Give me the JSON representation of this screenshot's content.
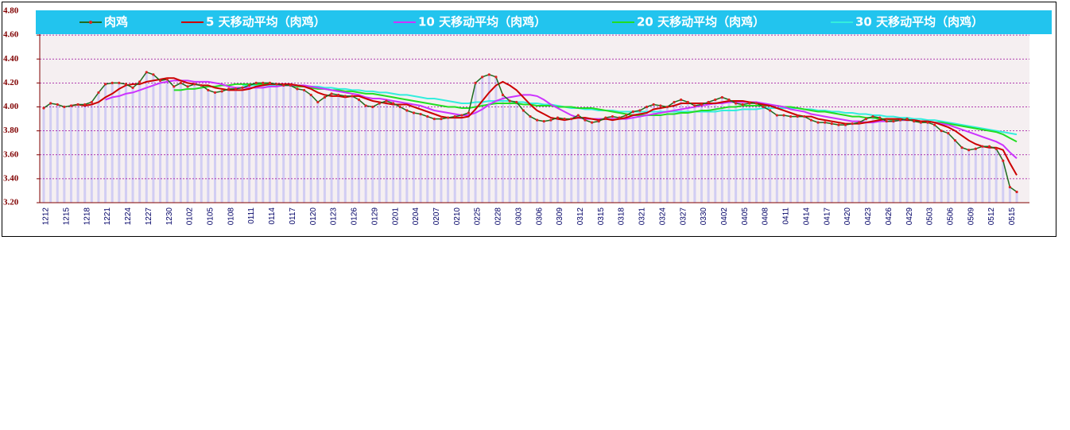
{
  "chart_data": {
    "type": "line",
    "categories": [
      "1212",
      null,
      null,
      "1215",
      null,
      null,
      "1218",
      null,
      null,
      "1221",
      null,
      null,
      "1224",
      null,
      null,
      "1227",
      null,
      null,
      "1230",
      null,
      null,
      "0102",
      null,
      null,
      "0105",
      null,
      null,
      "0108",
      null,
      null,
      "0111",
      null,
      null,
      "0114",
      null,
      null,
      "0117",
      null,
      null,
      "0120",
      null,
      null,
      "0123",
      null,
      null,
      "0126",
      null,
      null,
      "0129",
      null,
      null,
      "0201",
      null,
      null,
      "0204",
      null,
      null,
      "0207",
      null,
      null,
      "0210",
      null,
      null,
      "0225",
      null,
      null,
      "0228",
      null,
      null,
      "0303",
      null,
      null,
      "0306",
      null,
      null,
      "0309",
      null,
      null,
      "0312",
      null,
      null,
      "0315",
      null,
      null,
      "0318",
      null,
      null,
      "0321",
      null,
      null,
      "0324",
      null,
      null,
      "0327",
      null,
      null,
      "0330",
      null,
      null,
      "0402",
      null,
      null,
      "0405",
      null,
      null,
      "0408",
      null,
      null,
      "0411",
      null,
      null,
      "0414",
      null,
      null,
      "0417",
      null,
      null,
      "0420",
      null,
      null,
      "0423",
      null,
      null,
      "0426",
      null,
      null,
      "0429",
      null,
      null,
      "0503",
      null,
      null,
      "0506",
      null,
      null,
      "0509",
      null,
      null,
      "0512",
      null,
      null,
      "0515",
      null
    ],
    "series": [
      {
        "name": "肉鸡",
        "color": "#1f6b1f",
        "values": [
          3.99,
          4.03,
          4.02,
          4.0,
          4.01,
          4.02,
          4.02,
          4.04,
          4.12,
          4.19,
          4.2,
          4.2,
          4.19,
          4.16,
          4.21,
          4.29,
          4.27,
          4.22,
          4.23,
          4.17,
          4.2,
          4.17,
          4.19,
          4.18,
          4.14,
          4.12,
          4.13,
          4.15,
          4.15,
          4.16,
          4.18,
          4.2,
          4.2,
          4.2,
          4.19,
          4.18,
          4.18,
          4.15,
          4.14,
          4.1,
          4.04,
          4.08,
          4.11,
          4.1,
          4.09,
          4.09,
          4.06,
          4.01,
          4.0,
          4.03,
          4.05,
          4.03,
          4.0,
          3.97,
          3.95,
          3.94,
          3.92,
          3.9,
          3.9,
          3.91,
          3.92,
          3.93,
          3.95,
          4.2,
          4.25,
          4.27,
          4.25,
          4.1,
          4.05,
          4.04,
          3.97,
          3.92,
          3.89,
          3.88,
          3.89,
          3.91,
          3.9,
          3.9,
          3.93,
          3.89,
          3.87,
          3.88,
          3.91,
          3.92,
          3.91,
          3.93,
          3.96,
          3.97,
          4.0,
          4.02,
          4.01,
          4.0,
          4.04,
          4.06,
          4.04,
          4.01,
          4.02,
          4.04,
          4.06,
          4.08,
          4.06,
          4.03,
          4.02,
          4.03,
          4.03,
          4.0,
          3.97,
          3.93,
          3.93,
          3.92,
          3.92,
          3.92,
          3.89,
          3.87,
          3.87,
          3.86,
          3.85,
          3.85,
          3.86,
          3.87,
          3.9,
          3.92,
          3.91,
          3.88,
          3.88,
          3.89,
          3.9,
          3.88,
          3.87,
          3.87,
          3.85,
          3.8,
          3.78,
          3.72,
          3.66,
          3.64,
          3.65,
          3.67,
          3.67,
          3.65,
          3.55,
          3.33,
          3.29
        ]
      },
      {
        "name": "5 天移动平均（肉鸡）",
        "color": "#cc0000",
        "values": [
          null,
          null,
          null,
          null,
          4.01,
          4.02,
          4.01,
          4.02,
          4.04,
          4.08,
          4.11,
          4.15,
          4.18,
          4.19,
          4.19,
          4.21,
          4.22,
          4.23,
          4.24,
          4.24,
          4.22,
          4.2,
          4.19,
          4.18,
          4.18,
          4.16,
          4.15,
          4.14,
          4.14,
          4.14,
          4.15,
          4.17,
          4.18,
          4.19,
          4.19,
          4.19,
          4.19,
          4.18,
          4.17,
          4.15,
          4.12,
          4.1,
          4.09,
          4.09,
          4.08,
          4.09,
          4.09,
          4.07,
          4.05,
          4.04,
          4.03,
          4.02,
          4.02,
          4.02,
          4.0,
          3.98,
          3.96,
          3.94,
          3.92,
          3.91,
          3.91,
          3.91,
          3.92,
          3.98,
          4.05,
          4.12,
          4.18,
          4.21,
          4.18,
          4.14,
          4.08,
          4.02,
          3.97,
          3.94,
          3.91,
          3.9,
          3.89,
          3.9,
          3.91,
          3.91,
          3.9,
          3.89,
          3.9,
          3.89,
          3.9,
          3.91,
          3.93,
          3.94,
          3.95,
          3.98,
          3.99,
          4.0,
          4.01,
          4.03,
          4.03,
          4.03,
          4.03,
          4.03,
          4.03,
          4.04,
          4.05,
          4.05,
          4.05,
          4.04,
          4.03,
          4.02,
          4.01,
          3.99,
          3.97,
          3.95,
          3.93,
          3.92,
          3.92,
          3.9,
          3.89,
          3.88,
          3.87,
          3.86,
          3.86,
          3.86,
          3.87,
          3.88,
          3.89,
          3.9,
          3.9,
          3.9,
          3.89,
          3.89,
          3.88,
          3.88,
          3.87,
          3.85,
          3.83,
          3.8,
          3.76,
          3.72,
          3.69,
          3.67,
          3.66,
          3.66,
          3.64,
          3.53,
          3.43
        ]
      },
      {
        "name": "10 天移动平均（肉鸡）",
        "color": "#cc33ff",
        "values": [
          null,
          null,
          null,
          null,
          null,
          null,
          null,
          null,
          null,
          4.06,
          4.08,
          4.09,
          4.11,
          4.12,
          4.14,
          4.16,
          4.18,
          4.2,
          4.21,
          4.22,
          4.22,
          4.22,
          4.21,
          4.21,
          4.21,
          4.2,
          4.19,
          4.17,
          4.16,
          4.16,
          4.16,
          4.16,
          4.16,
          4.17,
          4.17,
          4.18,
          4.18,
          4.18,
          4.18,
          4.17,
          4.16,
          4.15,
          4.14,
          4.13,
          4.12,
          4.11,
          4.1,
          4.08,
          4.07,
          4.07,
          4.06,
          4.05,
          4.04,
          4.03,
          4.02,
          4.01,
          3.99,
          3.97,
          3.96,
          3.95,
          3.94,
          3.93,
          3.93,
          3.95,
          3.98,
          4.02,
          4.05,
          4.07,
          4.08,
          4.09,
          4.1,
          4.1,
          4.09,
          4.06,
          4.02,
          3.99,
          3.96,
          3.93,
          3.91,
          3.9,
          3.9,
          3.9,
          3.9,
          3.9,
          3.9,
          3.9,
          3.91,
          3.92,
          3.93,
          3.94,
          3.95,
          3.96,
          3.97,
          3.98,
          3.99,
          4.0,
          4.01,
          4.02,
          4.03,
          4.03,
          4.04,
          4.04,
          4.04,
          4.04,
          4.04,
          4.03,
          4.02,
          4.01,
          4.0,
          3.98,
          3.97,
          3.96,
          3.94,
          3.93,
          3.92,
          3.91,
          3.9,
          3.89,
          3.88,
          3.88,
          3.87,
          3.87,
          3.88,
          3.88,
          3.88,
          3.89,
          3.89,
          3.89,
          3.88,
          3.88,
          3.87,
          3.86,
          3.85,
          3.83,
          3.81,
          3.79,
          3.77,
          3.75,
          3.73,
          3.71,
          3.68,
          3.62,
          3.57
        ]
      },
      {
        "name": "20 天移动平均（肉鸡）",
        "color": "#22dd22",
        "values": [
          null,
          null,
          null,
          null,
          null,
          null,
          null,
          null,
          null,
          null,
          null,
          null,
          null,
          null,
          null,
          null,
          null,
          null,
          null,
          4.14,
          4.14,
          4.15,
          4.15,
          4.16,
          4.17,
          4.17,
          4.18,
          4.18,
          4.19,
          4.19,
          4.19,
          4.19,
          4.19,
          4.19,
          4.19,
          4.18,
          4.18,
          4.17,
          4.17,
          4.16,
          4.15,
          4.15,
          4.14,
          4.14,
          4.13,
          4.13,
          4.12,
          4.11,
          4.11,
          4.1,
          4.09,
          4.08,
          4.07,
          4.06,
          4.05,
          4.04,
          4.03,
          4.02,
          4.01,
          4.0,
          4.0,
          3.99,
          3.99,
          4.0,
          4.01,
          4.02,
          4.03,
          4.03,
          4.03,
          4.03,
          4.02,
          4.02,
          4.01,
          4.01,
          4.01,
          4.0,
          4.0,
          4.0,
          3.99,
          3.99,
          3.99,
          3.98,
          3.97,
          3.96,
          3.95,
          3.94,
          3.93,
          3.93,
          3.93,
          3.93,
          3.93,
          3.94,
          3.94,
          3.95,
          3.95,
          3.96,
          3.97,
          3.97,
          3.98,
          3.99,
          4.0,
          4.0,
          4.01,
          4.01,
          4.01,
          4.01,
          4.01,
          4.01,
          4.0,
          4.0,
          3.99,
          3.98,
          3.97,
          3.96,
          3.96,
          3.95,
          3.94,
          3.93,
          3.92,
          3.92,
          3.91,
          3.91,
          3.9,
          3.9,
          3.89,
          3.89,
          3.89,
          3.89,
          3.88,
          3.88,
          3.87,
          3.87,
          3.86,
          3.85,
          3.84,
          3.83,
          3.82,
          3.81,
          3.8,
          3.79,
          3.77,
          3.74,
          3.71
        ]
      },
      {
        "name": "30 天移动平均（肉鸡）",
        "color": "#33eedd",
        "values": [
          null,
          null,
          null,
          null,
          null,
          null,
          null,
          null,
          null,
          null,
          null,
          null,
          null,
          null,
          null,
          null,
          null,
          null,
          null,
          null,
          null,
          null,
          null,
          null,
          null,
          null,
          null,
          null,
          null,
          4.18,
          4.18,
          4.18,
          4.18,
          4.18,
          4.18,
          4.18,
          4.18,
          4.18,
          4.17,
          4.17,
          4.17,
          4.16,
          4.16,
          4.15,
          4.15,
          4.14,
          4.14,
          4.13,
          4.13,
          4.12,
          4.12,
          4.11,
          4.1,
          4.1,
          4.09,
          4.08,
          4.07,
          4.07,
          4.06,
          4.05,
          4.04,
          4.03,
          4.03,
          4.04,
          4.04,
          4.05,
          4.05,
          4.05,
          4.05,
          4.04,
          4.04,
          4.03,
          4.03,
          4.02,
          4.02,
          4.01,
          4.0,
          3.99,
          3.99,
          3.98,
          3.98,
          3.97,
          3.97,
          3.97,
          3.96,
          3.96,
          3.96,
          3.96,
          3.96,
          3.96,
          3.96,
          3.96,
          3.96,
          3.96,
          3.96,
          3.96,
          3.96,
          3.96,
          3.96,
          3.97,
          3.97,
          3.97,
          3.98,
          3.98,
          3.98,
          3.99,
          3.99,
          3.99,
          3.99,
          3.99,
          3.99,
          3.98,
          3.98,
          3.97,
          3.97,
          3.96,
          3.96,
          3.95,
          3.95,
          3.94,
          3.94,
          3.93,
          3.93,
          3.92,
          3.92,
          3.91,
          3.91,
          3.9,
          3.9,
          3.89,
          3.89,
          3.88,
          3.87,
          3.86,
          3.85,
          3.84,
          3.83,
          3.82,
          3.81,
          3.8,
          3.79,
          3.78,
          3.77
        ]
      }
    ],
    "ylim": [
      3.2,
      4.8
    ],
    "yticks": [
      {
        "value": 3.2,
        "label": "3.20"
      },
      {
        "value": 3.4,
        "label": "3.40"
      },
      {
        "value": 3.6,
        "label": "3.60"
      },
      {
        "value": 3.8,
        "label": "3.80"
      },
      {
        "value": 4.0,
        "label": "4.00"
      },
      {
        "value": 4.2,
        "label": "4.20"
      },
      {
        "value": 4.4,
        "label": "4.40"
      },
      {
        "value": 4.6,
        "label": "4.60"
      },
      {
        "value": 4.8,
        "label": "4.80"
      }
    ],
    "grid": true
  }
}
